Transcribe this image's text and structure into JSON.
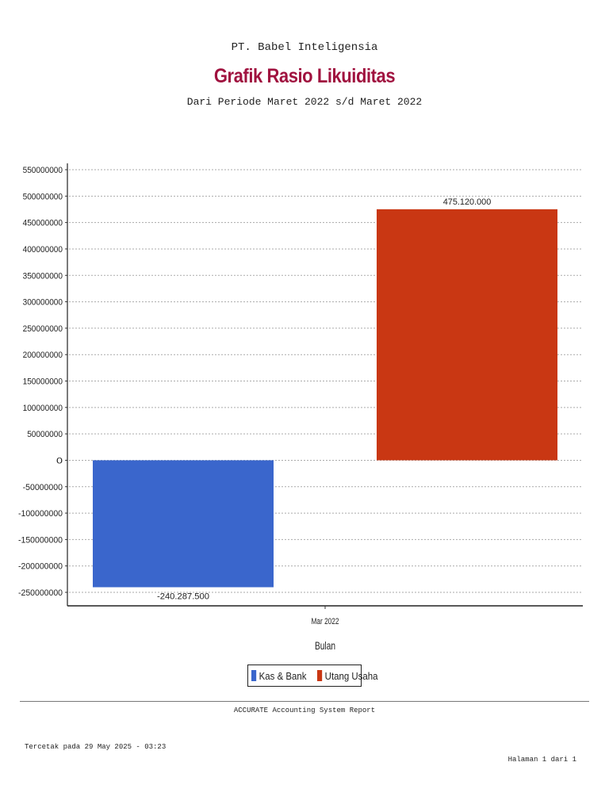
{
  "header": {
    "company": "PT. Babel Inteligensia",
    "title": "Grafik Rasio Likuiditas",
    "subtitle": "Dari Periode Maret 2022 s/d Maret 2022"
  },
  "chart_data": {
    "type": "bar",
    "title": "Grafik Rasio Likuiditas",
    "subtitle": "Dari Periode Maret 2022 s/d Maret 2022",
    "categories": [
      "Mar 2022"
    ],
    "series": [
      {
        "name": "Kas & Bank",
        "values": [
          -240287500
        ],
        "label": "-240.287.500",
        "color": "#3a66cc"
      },
      {
        "name": "Utang Usaha",
        "values": [
          475120000
        ],
        "label": "475.120.000",
        "color": "#c93713"
      }
    ],
    "xlabel": "Bulan",
    "ylabel": "",
    "ylim": [
      -250000000,
      550000000
    ],
    "yticks": [
      550000000,
      500000000,
      450000000,
      400000000,
      350000000,
      300000000,
      250000000,
      200000000,
      150000000,
      100000000,
      50000000,
      0,
      -50000000,
      -100000000,
      -150000000,
      -200000000,
      -250000000
    ],
    "ytick_labels": [
      "550000000",
      "500000000",
      "450000000",
      "400000000",
      "350000000",
      "300000000",
      "250000000",
      "200000000",
      "150000000",
      "100000000",
      "50000000",
      "0",
      "-50000000",
      "-100000000",
      "-150000000",
      "-200000000",
      "-250000000"
    ],
    "grid": true,
    "legend_position": "bottom"
  },
  "legend": {
    "items": [
      {
        "label": "Kas & Bank",
        "color": "#3a66cc"
      },
      {
        "label": "Utang Usaha",
        "color": "#c93713"
      }
    ]
  },
  "footer": {
    "report_name": "ACCURATE Accounting System Report",
    "printed": "Tercetak pada 29 May 2025 - 03:23",
    "page": "Halaman 1 dari 1"
  }
}
